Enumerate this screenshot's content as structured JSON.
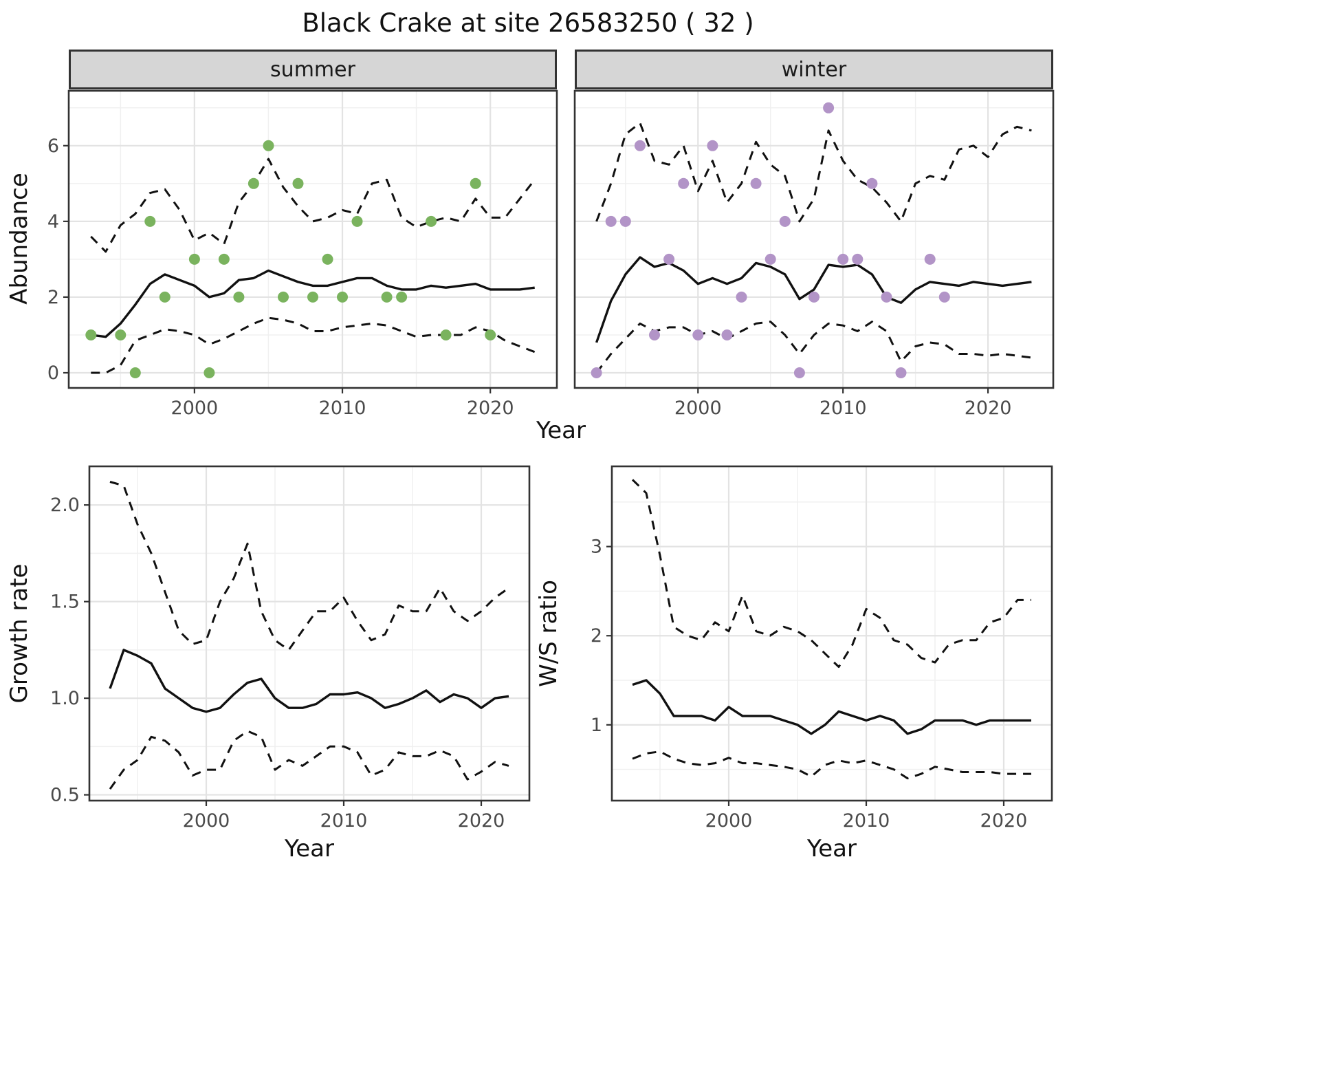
{
  "title": "Black Crake at site 26583250 ( 32 )",
  "colors": {
    "line": "#111111",
    "panel_border": "#333333",
    "grid_major": "#e3e3e3",
    "grid_minor": "#f0f0f0",
    "strip_bg": "#d6d6d6",
    "tick": "#333333",
    "tick_label": "#4a4a4a",
    "summer_point": "#7ab35e",
    "winter_point": "#b294c7"
  },
  "chart_data": [
    {
      "id": "abundance-summer",
      "type": "line",
      "facet": "summer",
      "xlabel": "Year",
      "ylabel": "Abundance",
      "xlim": [
        1991.5,
        2024.5
      ],
      "ylim": [
        -0.4,
        7.45
      ],
      "xticks": [
        2000,
        2010,
        2020
      ],
      "xtick_labels": [
        "2000",
        "2010",
        "2020"
      ],
      "yticks": [
        0,
        2,
        4,
        6
      ],
      "ytick_labels": [
        "0",
        "2",
        "4",
        "6"
      ],
      "grid": "major+minor",
      "x": [
        1993,
        1994,
        1995,
        1996,
        1997,
        1998,
        1999,
        2000,
        2001,
        2002,
        2003,
        2004,
        2005,
        2006,
        2007,
        2008,
        2009,
        2010,
        2011,
        2012,
        2013,
        2014,
        2015,
        2016,
        2017,
        2018,
        2019,
        2020,
        2021,
        2022,
        2023
      ],
      "series": [
        {
          "name": "median",
          "style": "solid",
          "values": [
            1.0,
            0.95,
            1.3,
            1.8,
            2.35,
            2.6,
            2.45,
            2.3,
            2.0,
            2.1,
            2.45,
            2.5,
            2.7,
            2.55,
            2.4,
            2.3,
            2.3,
            2.4,
            2.5,
            2.5,
            2.3,
            2.2,
            2.2,
            2.3,
            2.25,
            2.3,
            2.35,
            2.2,
            2.2,
            2.2,
            2.25
          ]
        },
        {
          "name": "upper-ci",
          "style": "dashed",
          "values": [
            3.6,
            3.2,
            3.9,
            4.2,
            4.75,
            4.85,
            4.3,
            3.5,
            3.7,
            3.4,
            4.5,
            5.0,
            5.65,
            4.9,
            4.4,
            4.0,
            4.1,
            4.3,
            4.2,
            5.0,
            5.1,
            4.1,
            3.85,
            4.0,
            4.1,
            4.0,
            4.6,
            4.1,
            4.1,
            4.6,
            5.1
          ]
        },
        {
          "name": "lower-ci",
          "style": "dashed",
          "values": [
            0.0,
            0.0,
            0.2,
            0.85,
            1.0,
            1.15,
            1.1,
            1.0,
            0.75,
            0.9,
            1.1,
            1.3,
            1.45,
            1.4,
            1.3,
            1.1,
            1.1,
            1.2,
            1.25,
            1.3,
            1.25,
            1.1,
            0.95,
            1.0,
            1.0,
            1.0,
            1.2,
            1.1,
            0.85,
            0.7,
            0.55
          ]
        }
      ],
      "points": {
        "name": "observed-counts-summer",
        "color": "#7ab35e",
        "data": [
          [
            1993,
            1
          ],
          [
            1995,
            1
          ],
          [
            1996,
            0
          ],
          [
            1997,
            4
          ],
          [
            1998,
            2
          ],
          [
            2000,
            3
          ],
          [
            2001,
            0
          ],
          [
            2002,
            3
          ],
          [
            2003,
            2
          ],
          [
            2004,
            5
          ],
          [
            2005,
            6
          ],
          [
            2006,
            2
          ],
          [
            2007,
            5
          ],
          [
            2008,
            2
          ],
          [
            2009,
            3
          ],
          [
            2010,
            2
          ],
          [
            2011,
            4
          ],
          [
            2013,
            2
          ],
          [
            2014,
            2
          ],
          [
            2016,
            4
          ],
          [
            2017,
            1
          ],
          [
            2019,
            5
          ],
          [
            2020,
            1
          ]
        ]
      }
    },
    {
      "id": "abundance-winter",
      "type": "line",
      "facet": "winter",
      "xlabel": "Year",
      "ylabel": "Abundance",
      "xlim": [
        1991.5,
        2024.5
      ],
      "ylim": [
        -0.4,
        7.45
      ],
      "xticks": [
        2000,
        2010,
        2020
      ],
      "xtick_labels": [
        "2000",
        "2010",
        "2020"
      ],
      "yticks": [
        0,
        2,
        4,
        6
      ],
      "ytick_labels": [
        "0",
        "2",
        "4",
        "6"
      ],
      "grid": "major+minor",
      "x": [
        1993,
        1994,
        1995,
        1996,
        1997,
        1998,
        1999,
        2000,
        2001,
        2002,
        2003,
        2004,
        2005,
        2006,
        2007,
        2008,
        2009,
        2010,
        2011,
        2012,
        2013,
        2014,
        2015,
        2016,
        2017,
        2018,
        2019,
        2020,
        2021,
        2022,
        2023
      ],
      "series": [
        {
          "name": "median",
          "style": "solid",
          "values": [
            0.8,
            1.9,
            2.6,
            3.05,
            2.8,
            2.9,
            2.7,
            2.35,
            2.5,
            2.35,
            2.5,
            2.9,
            2.8,
            2.6,
            1.95,
            2.2,
            2.85,
            2.8,
            2.85,
            2.6,
            2.0,
            1.85,
            2.2,
            2.4,
            2.35,
            2.3,
            2.4,
            2.35,
            2.3,
            2.35,
            2.4
          ]
        },
        {
          "name": "upper-ci",
          "style": "dashed",
          "values": [
            4.0,
            5.0,
            6.3,
            6.6,
            5.6,
            5.5,
            6.0,
            4.8,
            5.6,
            4.5,
            5.0,
            6.1,
            5.5,
            5.2,
            4.0,
            4.6,
            6.4,
            5.6,
            5.1,
            4.9,
            4.5,
            4.0,
            5.0,
            5.2,
            5.1,
            5.9,
            6.0,
            5.7,
            6.3,
            6.5,
            6.4
          ]
        },
        {
          "name": "lower-ci",
          "style": "dashed",
          "values": [
            0.0,
            0.5,
            0.9,
            1.3,
            1.1,
            1.2,
            1.2,
            1.0,
            1.1,
            0.9,
            1.1,
            1.3,
            1.35,
            1.0,
            0.5,
            1.0,
            1.3,
            1.25,
            1.1,
            1.35,
            1.1,
            0.3,
            0.7,
            0.8,
            0.75,
            0.5,
            0.5,
            0.45,
            0.5,
            0.45,
            0.4
          ]
        }
      ],
      "points": {
        "name": "observed-counts-winter",
        "color": "#b294c7",
        "data": [
          [
            1993,
            0
          ],
          [
            1994,
            4
          ],
          [
            1995,
            4
          ],
          [
            1996,
            6
          ],
          [
            1997,
            1
          ],
          [
            1998,
            3
          ],
          [
            1999,
            5
          ],
          [
            2000,
            1
          ],
          [
            2001,
            6
          ],
          [
            2002,
            1
          ],
          [
            2003,
            2
          ],
          [
            2004,
            5
          ],
          [
            2005,
            3
          ],
          [
            2006,
            4
          ],
          [
            2007,
            0
          ],
          [
            2008,
            2
          ],
          [
            2009,
            7
          ],
          [
            2010,
            3
          ],
          [
            2011,
            3
          ],
          [
            2012,
            5
          ],
          [
            2013,
            2
          ],
          [
            2014,
            0
          ],
          [
            2016,
            3
          ],
          [
            2017,
            2
          ]
        ]
      }
    },
    {
      "id": "growth-rate",
      "type": "line",
      "facet": null,
      "xlabel": "Year",
      "ylabel": "Growth rate",
      "xlim": [
        1991.5,
        2023.5
      ],
      "ylim": [
        0.47,
        2.2
      ],
      "xticks": [
        2000,
        2010,
        2020
      ],
      "xtick_labels": [
        "2000",
        "2010",
        "2020"
      ],
      "yticks": [
        0.5,
        1.0,
        1.5,
        2.0
      ],
      "ytick_labels": [
        "0.5",
        "1.0",
        "1.5",
        "2.0"
      ],
      "grid": "major+minor",
      "x": [
        1993,
        1994,
        1995,
        1996,
        1997,
        1998,
        1999,
        2000,
        2001,
        2002,
        2003,
        2004,
        2005,
        2006,
        2007,
        2008,
        2009,
        2010,
        2011,
        2012,
        2013,
        2014,
        2015,
        2016,
        2017,
        2018,
        2019,
        2020,
        2021,
        2022
      ],
      "series": [
        {
          "name": "median",
          "style": "solid",
          "values": [
            1.05,
            1.25,
            1.22,
            1.18,
            1.05,
            1.0,
            0.95,
            0.93,
            0.95,
            1.02,
            1.08,
            1.1,
            1.0,
            0.95,
            0.95,
            0.97,
            1.02,
            1.02,
            1.03,
            1.0,
            0.95,
            0.97,
            1.0,
            1.04,
            0.98,
            1.02,
            1.0,
            0.95,
            1.0,
            1.01
          ]
        },
        {
          "name": "upper-ci",
          "style": "dashed",
          "values": [
            2.12,
            2.1,
            1.9,
            1.75,
            1.55,
            1.35,
            1.28,
            1.3,
            1.5,
            1.62,
            1.8,
            1.45,
            1.3,
            1.25,
            1.35,
            1.45,
            1.45,
            1.52,
            1.4,
            1.3,
            1.33,
            1.48,
            1.45,
            1.45,
            1.57,
            1.45,
            1.4,
            1.45,
            1.52,
            1.57
          ]
        },
        {
          "name": "lower-ci",
          "style": "dashed",
          "values": [
            0.53,
            0.63,
            0.68,
            0.8,
            0.78,
            0.72,
            0.6,
            0.63,
            0.63,
            0.78,
            0.83,
            0.8,
            0.63,
            0.68,
            0.65,
            0.7,
            0.75,
            0.75,
            0.72,
            0.6,
            0.63,
            0.72,
            0.7,
            0.7,
            0.73,
            0.7,
            0.58,
            0.62,
            0.67,
            0.65
          ]
        }
      ],
      "points": null
    },
    {
      "id": "ws-ratio",
      "type": "line",
      "facet": null,
      "xlabel": "Year",
      "ylabel": "W/S ratio",
      "xlim": [
        1991.5,
        2023.5
      ],
      "ylim": [
        0.15,
        3.9
      ],
      "xticks": [
        2000,
        2010,
        2020
      ],
      "xtick_labels": [
        "2000",
        "2010",
        "2020"
      ],
      "yticks": [
        1,
        2,
        3
      ],
      "ytick_labels": [
        "1",
        "2",
        "3"
      ],
      "grid": "major+minor",
      "x": [
        1993,
        1994,
        1995,
        1996,
        1997,
        1998,
        1999,
        2000,
        2001,
        2002,
        2003,
        2004,
        2005,
        2006,
        2007,
        2008,
        2009,
        2010,
        2011,
        2012,
        2013,
        2014,
        2015,
        2016,
        2017,
        2018,
        2019,
        2020,
        2021,
        2022
      ],
      "series": [
        {
          "name": "median",
          "style": "solid",
          "values": [
            1.45,
            1.5,
            1.35,
            1.1,
            1.1,
            1.1,
            1.05,
            1.2,
            1.1,
            1.1,
            1.1,
            1.05,
            1.0,
            0.9,
            1.0,
            1.15,
            1.1,
            1.05,
            1.1,
            1.05,
            0.9,
            0.95,
            1.05,
            1.05,
            1.05,
            1.0,
            1.05,
            1.05,
            1.05,
            1.05
          ]
        },
        {
          "name": "upper-ci",
          "style": "dashed",
          "values": [
            3.75,
            3.6,
            2.9,
            2.1,
            2.0,
            1.95,
            2.15,
            2.05,
            2.45,
            2.05,
            2.0,
            2.1,
            2.05,
            1.95,
            1.8,
            1.65,
            1.9,
            2.3,
            2.2,
            1.95,
            1.9,
            1.75,
            1.7,
            1.9,
            1.95,
            1.95,
            2.15,
            2.2,
            2.4,
            2.4
          ]
        },
        {
          "name": "lower-ci",
          "style": "dashed",
          "values": [
            0.62,
            0.68,
            0.7,
            0.62,
            0.57,
            0.55,
            0.57,
            0.63,
            0.57,
            0.57,
            0.55,
            0.53,
            0.5,
            0.42,
            0.55,
            0.6,
            0.57,
            0.6,
            0.55,
            0.5,
            0.4,
            0.45,
            0.53,
            0.5,
            0.47,
            0.47,
            0.47,
            0.45,
            0.45,
            0.45
          ]
        }
      ],
      "points": null
    }
  ]
}
